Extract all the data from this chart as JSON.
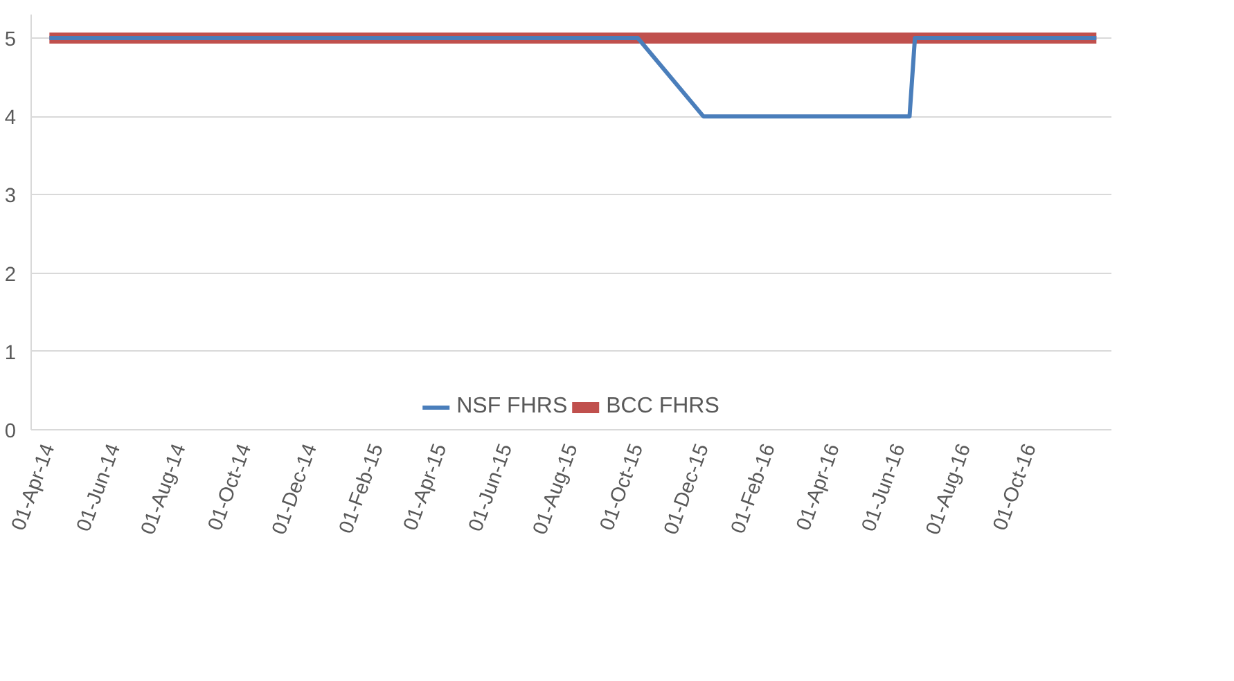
{
  "chart_data": {
    "type": "line",
    "x": [
      "2014-04-01",
      "2015-10-01",
      "2015-12-01",
      "2016-06-10",
      "2016-06-15",
      "2016-12-01"
    ],
    "series": [
      {
        "name": "NSF FHRS",
        "color": "#4a7ebb",
        "values": [
          5,
          5,
          4,
          4,
          5,
          5
        ]
      },
      {
        "name": "BCC FHRS",
        "color": "#c0504d",
        "x": [
          "2014-04-01",
          "2016-12-01"
        ],
        "values": [
          5,
          5
        ]
      }
    ],
    "ylim": [
      0,
      5.3
    ],
    "yticks": [
      0,
      1,
      2,
      3,
      4,
      5
    ],
    "xlim": [
      "2014-03-15",
      "2016-12-15"
    ],
    "xticks": [
      {
        "value": "2014-04-01",
        "label": "01-Apr-14"
      },
      {
        "value": "2014-06-01",
        "label": "01-Jun-14"
      },
      {
        "value": "2014-08-01",
        "label": "01-Aug-14"
      },
      {
        "value": "2014-10-01",
        "label": "01-Oct-14"
      },
      {
        "value": "2014-12-01",
        "label": "01-Dec-14"
      },
      {
        "value": "2015-02-01",
        "label": "01-Feb-15"
      },
      {
        "value": "2015-04-01",
        "label": "01-Apr-15"
      },
      {
        "value": "2015-06-01",
        "label": "01-Jun-15"
      },
      {
        "value": "2015-08-01",
        "label": "01-Aug-15"
      },
      {
        "value": "2015-10-01",
        "label": "01-Oct-15"
      },
      {
        "value": "2015-12-01",
        "label": "01-Dec-15"
      },
      {
        "value": "2016-02-01",
        "label": "01-Feb-16"
      },
      {
        "value": "2016-04-01",
        "label": "01-Apr-16"
      },
      {
        "value": "2016-06-01",
        "label": "01-Jun-16"
      },
      {
        "value": "2016-08-01",
        "label": "01-Aug-16"
      },
      {
        "value": "2016-10-01",
        "label": "01-Oct-16"
      }
    ],
    "grid": "y",
    "legend": "bottom",
    "marker": "none",
    "line_style": "solid"
  }
}
